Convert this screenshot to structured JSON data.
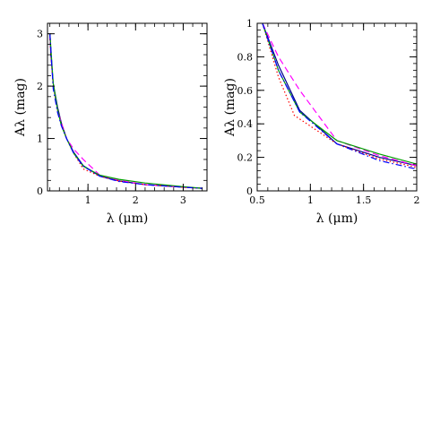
{
  "chart_data": [
    {
      "type": "line",
      "xlabel": "λ (μm)",
      "ylabel": "A_λ (mag)",
      "xlim": [
        0.15,
        3.5
      ],
      "ylim": [
        0,
        3.2
      ],
      "xticks": [
        1,
        2,
        3
      ],
      "yticks": [
        0,
        1,
        2,
        3
      ],
      "grid": false,
      "legend": "none",
      "series": [
        {
          "color": "#00008b",
          "style": "solid",
          "x": [
            0.2,
            0.22,
            0.27,
            0.36,
            0.44,
            0.55,
            0.7,
            0.9,
            1.25,
            1.65,
            2.2,
            3.0,
            3.4
          ],
          "y": [
            3.0,
            2.6,
            2.05,
            1.6,
            1.3,
            1.0,
            0.74,
            0.48,
            0.28,
            0.19,
            0.12,
            0.07,
            0.05
          ]
        },
        {
          "color": "#ff00ff",
          "style": "dashed",
          "x": [
            0.2,
            0.27,
            0.36,
            0.44,
            0.55,
            0.7,
            0.9,
            1.25,
            1.65,
            2.2,
            3.0,
            3.4
          ],
          "y": [
            2.95,
            2.0,
            1.55,
            1.3,
            1.0,
            0.8,
            0.6,
            0.3,
            0.2,
            0.12,
            0.07,
            0.05
          ]
        },
        {
          "color": "#ff0000",
          "style": "dotted",
          "x": [
            0.2,
            0.27,
            0.36,
            0.44,
            0.55,
            0.7,
            0.9,
            1.25,
            1.65,
            2.2,
            3.0,
            3.4
          ],
          "y": [
            2.9,
            2.0,
            1.55,
            1.28,
            1.0,
            0.72,
            0.42,
            0.28,
            0.19,
            0.12,
            0.07,
            0.05
          ]
        },
        {
          "color": "#00a000",
          "style": "solid",
          "x": [
            0.2,
            0.27,
            0.36,
            0.44,
            0.55,
            0.7,
            0.9,
            1.25,
            1.65,
            2.2,
            3.0,
            3.4
          ],
          "y": [
            3.0,
            2.05,
            1.55,
            1.25,
            1.0,
            0.72,
            0.47,
            0.3,
            0.22,
            0.15,
            0.08,
            0.05
          ]
        },
        {
          "color": "#0000ff",
          "style": "dashdot",
          "x": [
            0.2,
            0.27,
            0.36,
            0.44,
            0.55,
            0.7,
            0.9,
            1.25,
            1.65,
            2.2,
            3.0,
            3.4
          ],
          "y": [
            3.0,
            1.95,
            1.5,
            1.25,
            1.0,
            0.72,
            0.47,
            0.28,
            0.18,
            0.12,
            0.07,
            0.05
          ]
        }
      ]
    },
    {
      "type": "line",
      "xlabel": "λ (μm)",
      "ylabel": "A_λ (mag)",
      "xlim": [
        0.5,
        2.0
      ],
      "ylim": [
        0,
        1
      ],
      "xticks": [
        0.5,
        1,
        1.5,
        2
      ],
      "yticks": [
        0,
        0.2,
        0.4,
        0.6,
        0.8,
        1
      ],
      "grid": false,
      "legend": "none",
      "series": [
        {
          "color": "#00008b",
          "style": "solid",
          "x": [
            0.55,
            0.7,
            0.9,
            1.25,
            1.65,
            2.0
          ],
          "y": [
            1.0,
            0.75,
            0.48,
            0.28,
            0.2,
            0.15
          ]
        },
        {
          "color": "#ff00ff",
          "style": "dashed",
          "x": [
            0.55,
            0.7,
            0.9,
            1.25,
            1.65,
            2.0
          ],
          "y": [
            1.0,
            0.8,
            0.6,
            0.3,
            0.21,
            0.15
          ]
        },
        {
          "color": "#ff0000",
          "style": "dotted",
          "x": [
            0.55,
            0.7,
            0.85,
            1.25,
            1.65,
            2.0
          ],
          "y": [
            1.0,
            0.68,
            0.45,
            0.28,
            0.19,
            0.14
          ]
        },
        {
          "color": "#00a000",
          "style": "solid",
          "x": [
            0.55,
            0.7,
            0.9,
            1.25,
            1.65,
            2.0
          ],
          "y": [
            1.0,
            0.72,
            0.47,
            0.3,
            0.22,
            0.16
          ]
        },
        {
          "color": "#0000ff",
          "style": "dashdot",
          "x": [
            0.55,
            0.7,
            0.9,
            1.25,
            1.65,
            2.0
          ],
          "y": [
            1.0,
            0.72,
            0.47,
            0.28,
            0.18,
            0.13
          ]
        }
      ]
    }
  ]
}
